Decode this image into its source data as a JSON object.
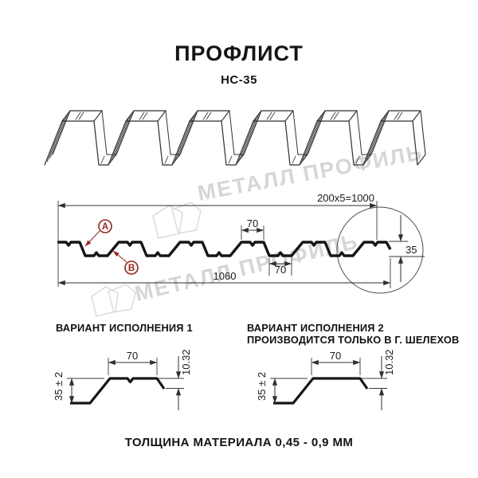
{
  "header": {
    "title": "ПРОФЛИСТ",
    "subtitle": "НС-35"
  },
  "watermark": {
    "text": "МЕТАЛЛ ПРОФИЛЬ"
  },
  "cross_section": {
    "coverage_width": "200x5=1000",
    "crest_width": "70",
    "valley_width": "70",
    "overall_width": "1060",
    "profile_height": "35",
    "side_a": "A",
    "side_b": "B"
  },
  "variants": [
    {
      "heading": "ВАРИАНТ ИСПОЛНЕНИЯ 1",
      "top_width": "70",
      "edge_drop": "10.32",
      "height": "35 ± 2"
    },
    {
      "heading": "ВАРИАНТ ИСПОЛНЕНИЯ 2",
      "subheading": "ПРОИЗВОДИТСЯ ТОЛЬКО В Г. ШЕЛЕХОВ",
      "top_width": "70",
      "edge_drop": "10.32",
      "height": "35 ± 2"
    }
  ],
  "footer": {
    "material_thickness": "ТОЛЩИНА МАТЕРИАЛА 0,45 - 0,9 ММ"
  },
  "colors": {
    "line": "#2f2f2f",
    "marker_red": "#9e201a",
    "watermark": "#d6d6d6"
  }
}
